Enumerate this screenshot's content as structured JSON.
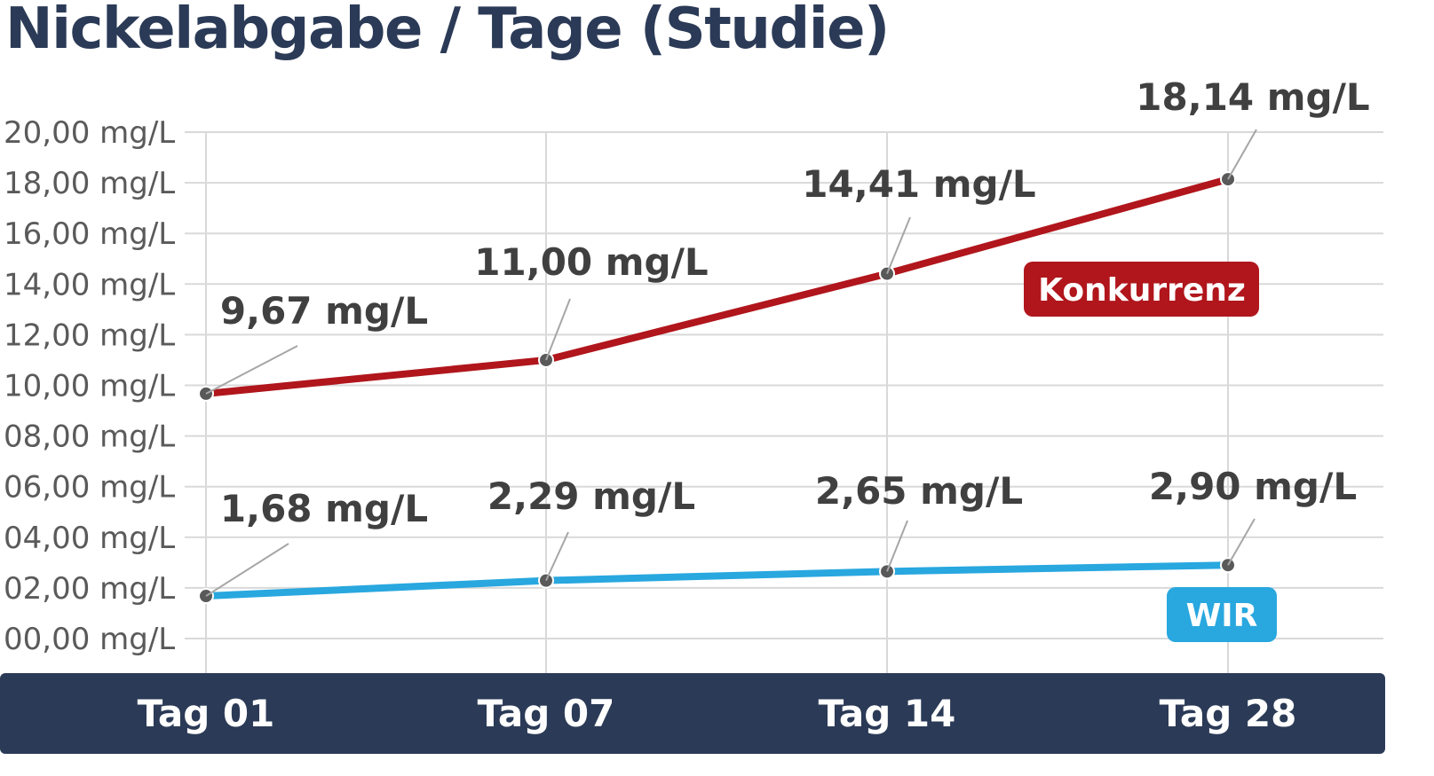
{
  "title": "Nickelabgabe / Tage (Studie)",
  "chart_data": {
    "type": "line",
    "title": "Nickelabgabe / Tage (Studie)",
    "xlabel": "",
    "ylabel": "",
    "categories": [
      "Tag 01",
      "Tag 07",
      "Tag 14",
      "Tag 28"
    ],
    "yticks": [
      "00,00 mg/L",
      "02,00 mg/L",
      "04,00 mg/L",
      "06,00 mg/L",
      "08,00 mg/L",
      "10,00 mg/L",
      "12,00 mg/L",
      "14,00 mg/L",
      "16,00 mg/L",
      "18,00 mg/L",
      "20,00 mg/L"
    ],
    "ylim": [
      0,
      20
    ],
    "grid": true,
    "series": [
      {
        "name": "Konkurrenz",
        "values": [
          9.67,
          11.0,
          14.41,
          18.14
        ],
        "labels": [
          "9,67 mg/L",
          "11,00 mg/L",
          "14,41 mg/L",
          "18,14 mg/L"
        ],
        "color": "#b0161c"
      },
      {
        "name": "WIR",
        "values": [
          1.68,
          2.29,
          2.65,
          2.9
        ],
        "labels": [
          "1,68 mg/L",
          "2,29 mg/L",
          "2,65 mg/L",
          "2,90 mg/L"
        ],
        "color": "#29a7df"
      }
    ],
    "marker_color": "#595959",
    "axis_band_color": "#2b3a56"
  }
}
